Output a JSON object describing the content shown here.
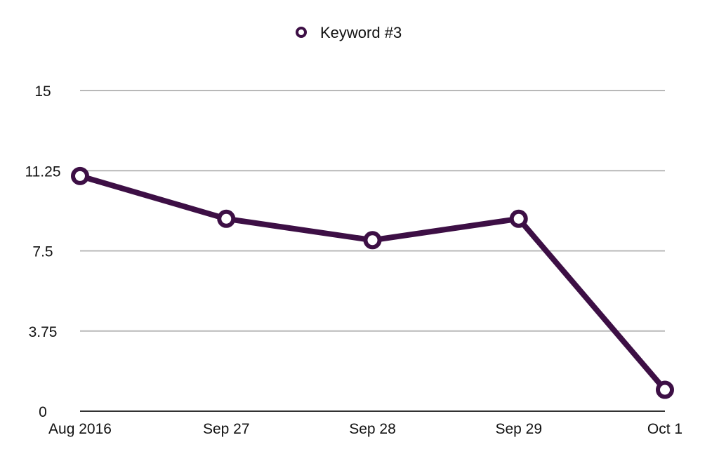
{
  "colors": {
    "series": "#3d0f45",
    "grid": "#b8b8b8",
    "axis": "#333333",
    "marker_fill": "#ffffff"
  },
  "chart_data": {
    "type": "line",
    "title": "",
    "xlabel": "",
    "ylabel": "",
    "categories": [
      "Aug 2016",
      "Sep 27",
      "Sep 28",
      "Sep 29",
      "Oct 1"
    ],
    "series": [
      {
        "name": "Keyword #3",
        "values": [
          11,
          9,
          8,
          9,
          1
        ]
      }
    ],
    "y_ticks": [
      "0",
      "3.75",
      "7.5",
      "11.25",
      "15"
    ],
    "ylim": [
      0,
      15
    ],
    "grid": true,
    "legend": "top-center",
    "marker": "hollow-circle"
  }
}
